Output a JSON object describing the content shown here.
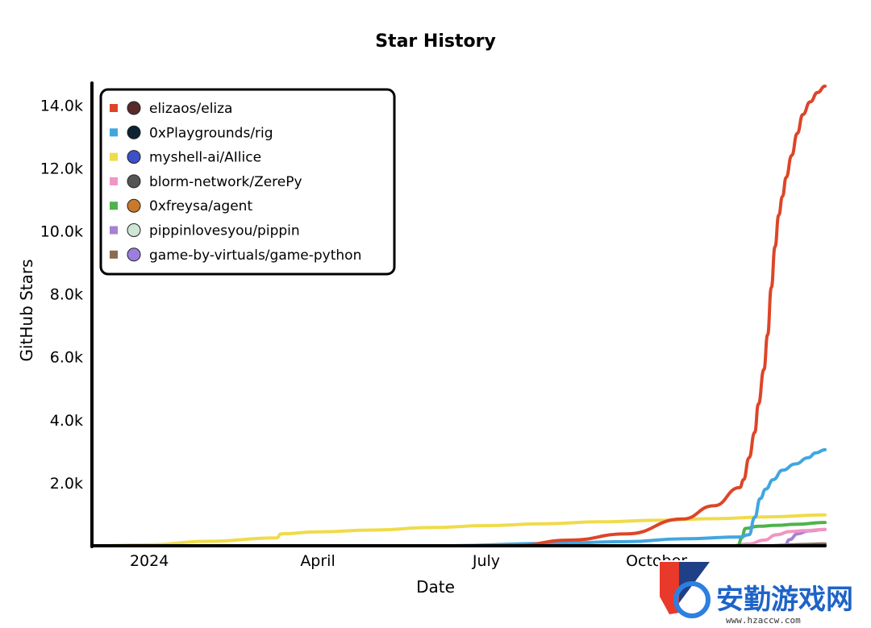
{
  "chart_data": {
    "type": "line",
    "title": "Star History",
    "xlabel": "Date",
    "ylabel": "GitHub Stars",
    "x_ticks": [
      "2024",
      "April",
      "July",
      "October"
    ],
    "y_ticks": [
      "2.0k",
      "4.0k",
      "6.0k",
      "8.0k",
      "10.0k",
      "12.0k",
      "14.0k"
    ],
    "y_tick_values": [
      2000,
      4000,
      6000,
      8000,
      10000,
      12000,
      14000
    ],
    "x_tick_dates": [
      "2024-01-01",
      "2024-04-01",
      "2024-07-01",
      "2024-10-01"
    ],
    "x_range": [
      "2023-12-01",
      "2024-12-31"
    ],
    "ylim": [
      0,
      14700
    ],
    "legend_position": "top-left",
    "series": [
      {
        "name": "elizaos/eliza",
        "color": "#dd4528",
        "x": [
          "2024-07-16",
          "2024-08-15",
          "2024-09-15",
          "2024-10-15",
          "2024-11-01",
          "2024-11-15",
          "2024-11-17",
          "2024-11-20",
          "2024-11-23",
          "2024-11-25",
          "2024-11-28",
          "2024-11-30",
          "2024-12-02",
          "2024-12-04",
          "2024-12-06",
          "2024-12-08",
          "2024-12-10",
          "2024-12-13",
          "2024-12-16",
          "2024-12-19",
          "2024-12-23",
          "2024-12-27",
          "2024-12-31"
        ],
        "y": [
          0,
          180,
          380,
          850,
          1270,
          1850,
          2100,
          2800,
          3600,
          4500,
          5600,
          6700,
          8200,
          9500,
          10500,
          11100,
          11700,
          12400,
          13100,
          13700,
          14100,
          14400,
          14600
        ]
      },
      {
        "name": "0xPlaygrounds/rig",
        "color": "#41a6e0",
        "x": [
          "2024-06-10",
          "2024-08-01",
          "2024-09-15",
          "2024-10-15",
          "2024-11-15",
          "2024-11-20",
          "2024-11-23",
          "2024-11-26",
          "2024-11-29",
          "2024-12-03",
          "2024-12-08",
          "2024-12-15",
          "2024-12-22",
          "2024-12-26",
          "2024-12-31"
        ],
        "y": [
          0,
          70,
          130,
          220,
          280,
          350,
          900,
          1500,
          1800,
          2100,
          2400,
          2600,
          2800,
          2950,
          3050
        ]
      },
      {
        "name": "myshell-ai/AIlice",
        "color": "#f0db4a",
        "x": [
          "2023-12-01",
          "2024-01-01",
          "2024-02-01",
          "2024-03-10",
          "2024-03-12",
          "2024-04-01",
          "2024-05-01",
          "2024-06-01",
          "2024-07-01",
          "2024-08-01",
          "2024-09-01",
          "2024-10-01",
          "2024-11-01",
          "2024-12-01",
          "2024-12-31"
        ],
        "y": [
          0,
          30,
          140,
          250,
          380,
          440,
          500,
          580,
          640,
          700,
          760,
          810,
          860,
          920,
          980
        ]
      },
      {
        "name": "blorm-network/ZerePy",
        "color": "#f195c2",
        "x": [
          "2024-11-10",
          "2024-11-20",
          "2024-11-28",
          "2024-12-05",
          "2024-12-12",
          "2024-12-20",
          "2024-12-31"
        ],
        "y": [
          0,
          60,
          180,
          350,
          450,
          480,
          520
        ]
      },
      {
        "name": "0xfreysa/agent",
        "color": "#4db34d",
        "x": [
          "2024-11-14",
          "2024-11-16",
          "2024-11-18",
          "2024-11-25",
          "2024-12-05",
          "2024-12-15",
          "2024-12-31"
        ],
        "y": [
          0,
          250,
          550,
          620,
          650,
          680,
          740
        ]
      },
      {
        "name": "pippinlovesyou/pippin",
        "color": "#a781d2",
        "x": [
          "2024-12-09",
          "2024-12-12",
          "2024-12-16",
          "2024-12-22",
          "2024-12-31"
        ],
        "y": [
          0,
          200,
          380,
          470,
          520
        ]
      },
      {
        "name": "game-by-virtuals/game-python",
        "color": "#8b6b52",
        "x": [
          "2024-12-01",
          "2024-12-10",
          "2024-12-20",
          "2024-12-31"
        ],
        "y": [
          0,
          20,
          40,
          60
        ]
      }
    ]
  },
  "watermark": {
    "text": "安勤游戏网",
    "url": "www.hzaccw.com"
  }
}
